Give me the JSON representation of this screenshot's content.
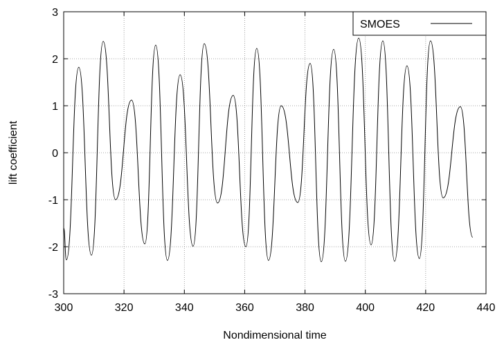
{
  "chart_data": {
    "type": "line",
    "xlabel": "Nondimensional time",
    "ylabel": "lift coefficient",
    "x": [
      300,
      300.9,
      305.0,
      309.2,
      313.1,
      317.2,
      322.5,
      326.9,
      330.5,
      334.4,
      338.6,
      342.9,
      346.6,
      351.0,
      356.2,
      360.4,
      364.0,
      367.9,
      372.1,
      377.6,
      381.7,
      385.4,
      389.5,
      393.4,
      397.8,
      401.9,
      405.8,
      409.7,
      413.8,
      417.9,
      421.6,
      425.8,
      431.5,
      435.6
    ],
    "series": [
      {
        "name": "SMOES",
        "color": "#000000",
        "values": [
          -1.6,
          -2.28,
          1.82,
          -2.18,
          2.37,
          -1.0,
          1.12,
          -1.94,
          2.29,
          -2.29,
          1.66,
          -1.99,
          2.32,
          -1.07,
          1.22,
          -2.0,
          2.22,
          -2.29,
          1.0,
          -1.06,
          1.9,
          -2.32,
          2.2,
          -2.31,
          2.44,
          -1.96,
          2.38,
          -2.31,
          1.85,
          -2.25,
          2.38,
          -0.96,
          0.98,
          -1.8
        ]
      }
    ],
    "xlim": [
      300,
      440
    ],
    "xticks": [
      300,
      320,
      340,
      360,
      380,
      400,
      420,
      440
    ],
    "ylim": [
      -3,
      3
    ],
    "yticks": [
      -3,
      -2,
      -1,
      0,
      1,
      2,
      3
    ],
    "grid": true,
    "legend": "upper right"
  }
}
